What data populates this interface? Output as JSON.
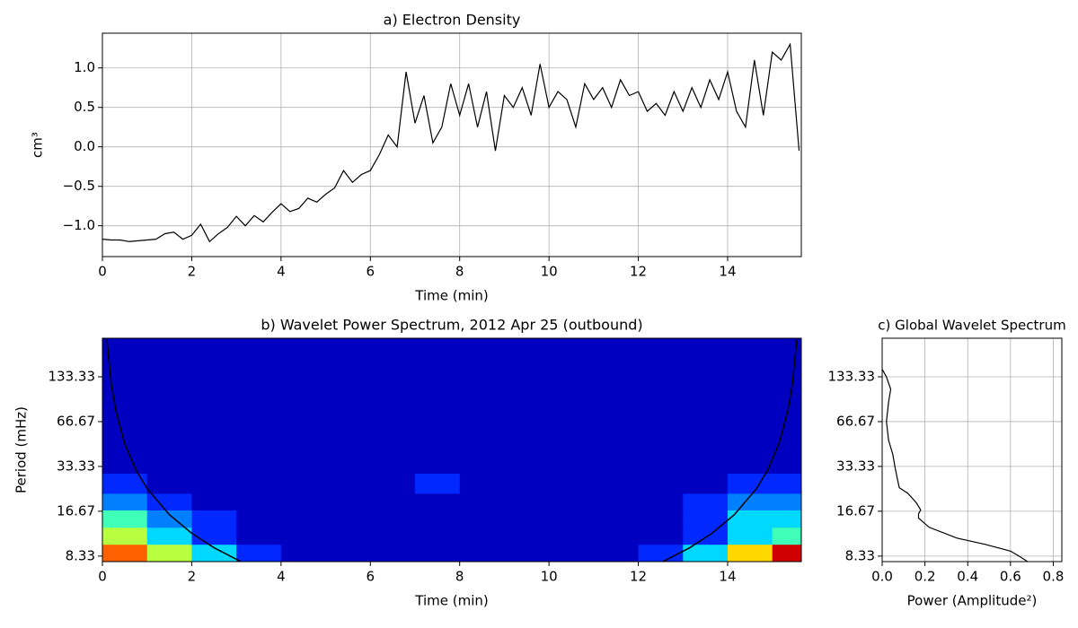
{
  "chart_data": [
    {
      "type": "line",
      "title": "a) Electron Density",
      "xlabel": "Time (min)",
      "ylabel": "cm³",
      "color": "#000000",
      "grid": true,
      "x": [
        0,
        0.2,
        0.4,
        0.6,
        0.8,
        1.0,
        1.2,
        1.4,
        1.6,
        1.8,
        2.0,
        2.2,
        2.4,
        2.6,
        2.8,
        3.0,
        3.2,
        3.4,
        3.6,
        3.8,
        4.0,
        4.2,
        4.4,
        4.6,
        4.8,
        5.0,
        5.2,
        5.4,
        5.6,
        5.8,
        6.0,
        6.2,
        6.4,
        6.6,
        6.8,
        7.0,
        7.2,
        7.4,
        7.6,
        7.8,
        8.0,
        8.2,
        8.4,
        8.6,
        8.8,
        9.0,
        9.2,
        9.4,
        9.6,
        9.8,
        10.0,
        10.2,
        10.4,
        10.6,
        10.8,
        11.0,
        11.2,
        11.4,
        11.6,
        11.8,
        12.0,
        12.2,
        12.4,
        12.6,
        12.8,
        13.0,
        13.2,
        13.4,
        13.6,
        13.8,
        14.0,
        14.2,
        14.4,
        14.6,
        14.8,
        15.0,
        15.2,
        15.4,
        15.6
      ],
      "values": [
        -1.17,
        -1.18,
        -1.18,
        -1.2,
        -1.19,
        -1.18,
        -1.17,
        -1.1,
        -1.08,
        -1.17,
        -1.12,
        -0.98,
        -1.2,
        -1.1,
        -1.02,
        -0.88,
        -1.0,
        -0.87,
        -0.95,
        -0.83,
        -0.72,
        -0.82,
        -0.78,
        -0.65,
        -0.7,
        -0.6,
        -0.52,
        -0.3,
        -0.45,
        -0.35,
        -0.3,
        -0.1,
        0.15,
        0.0,
        0.95,
        0.3,
        0.65,
        0.05,
        0.25,
        0.8,
        0.4,
        0.8,
        0.25,
        0.7,
        -0.05,
        0.65,
        0.5,
        0.75,
        0.4,
        1.05,
        0.5,
        0.7,
        0.6,
        0.25,
        0.8,
        0.6,
        0.75,
        0.5,
        0.85,
        0.65,
        0.7,
        0.45,
        0.55,
        0.4,
        0.7,
        0.45,
        0.75,
        0.5,
        0.85,
        0.6,
        0.95,
        0.45,
        0.25,
        1.1,
        0.4,
        1.2,
        1.1,
        1.3,
        -0.05
      ],
      "xlim": [
        0,
        15.65
      ],
      "ylim": [
        -1.39,
        1.44
      ],
      "xticks": [
        0,
        2,
        4,
        6,
        8,
        10,
        12,
        14
      ],
      "yticks": [
        {
          "value": -1.0,
          "label": "−1.0"
        },
        {
          "value": -0.5,
          "label": "−0.5"
        },
        {
          "value": 0,
          "label": "0.0"
        },
        {
          "value": 0.5,
          "label": "0.5"
        },
        {
          "value": 1.0,
          "label": "1.0"
        }
      ]
    },
    {
      "type": "heatmap",
      "title": "b) Wavelet Power Spectrum, 2012 Apr 25 (outbound)",
      "xlabel": "Time (min)",
      "ylabel": "Period (mHz)",
      "grid": false,
      "log_y": true,
      "x_edges": [
        0,
        1,
        2,
        3,
        4,
        5,
        6,
        7,
        8,
        9,
        10,
        11,
        12,
        13,
        14,
        15,
        15.65
      ],
      "y_edges": [
        7.65,
        10,
        13,
        17,
        22,
        30,
        242
      ],
      "z": [
        [
          7,
          5,
          3,
          1,
          0,
          0,
          0,
          0,
          0,
          0,
          0,
          0,
          1,
          3,
          6,
          8
        ],
        [
          5,
          3,
          1,
          0,
          0,
          0,
          0,
          0,
          0,
          0,
          0,
          0,
          0,
          1,
          3,
          4
        ],
        [
          4,
          2,
          1,
          0,
          0,
          0,
          0,
          0,
          0,
          0,
          0,
          0,
          0,
          1,
          3,
          3
        ],
        [
          2,
          1,
          0,
          0,
          0,
          0,
          0,
          0,
          0,
          0,
          0,
          0,
          0,
          1,
          2,
          2
        ],
        [
          1,
          0,
          0,
          0,
          0,
          0,
          0,
          1,
          0,
          0,
          0,
          0,
          0,
          0,
          1,
          1
        ],
        [
          0,
          0,
          0,
          0,
          0,
          0,
          0,
          0,
          0,
          0,
          0,
          0,
          0,
          0,
          0,
          0
        ]
      ],
      "colors": [
        "#0000c0",
        "#0028ff",
        "#0080ff",
        "#00d8ff",
        "#40ffb8",
        "#b8ff40",
        "#ffd800",
        "#ff6000",
        "#d00000"
      ],
      "coi": {
        "color": "#000000",
        "x": [
          0.1,
          0.2,
          0.3,
          0.5,
          0.75,
          1,
          1.5,
          2,
          2.5,
          3.1,
          7.8,
          12.55,
          13.15,
          13.65,
          14.15,
          14.65,
          14.9,
          15.15,
          15.35,
          15.45,
          15.55
        ],
        "values": [
          237,
          118.5,
          79,
          47.4,
          31.6,
          23.7,
          15.8,
          11.85,
          9.48,
          7.65,
          null,
          7.65,
          9.48,
          11.85,
          15.8,
          23.7,
          31.6,
          47.4,
          79,
          118.5,
          237
        ]
      },
      "xlim": [
        0,
        15.65
      ],
      "ylim": [
        7.65,
        242
      ],
      "xticks": [
        0,
        2,
        4,
        6,
        8,
        10,
        12,
        14
      ],
      "yticks": [
        8.33,
        16.67,
        33.33,
        66.67,
        133.33
      ]
    },
    {
      "type": "profile",
      "title": "c) Global Wavelet Spectrum",
      "xlabel": "Power (Amplitude²)",
      "color": "#000000",
      "grid": true,
      "log_y": true,
      "y": [
        150,
        133,
        110,
        90,
        66.67,
        50,
        40,
        33,
        28,
        24,
        22,
        19,
        17,
        16,
        15,
        13,
        11,
        10,
        9,
        8.33,
        7.65
      ],
      "values": [
        0.0,
        0.02,
        0.04,
        0.03,
        0.02,
        0.03,
        0.05,
        0.06,
        0.07,
        0.08,
        0.12,
        0.16,
        0.18,
        0.17,
        0.17,
        0.22,
        0.35,
        0.48,
        0.6,
        0.64,
        0.68
      ],
      "xlim": [
        0,
        0.84
      ],
      "ylim": [
        7.65,
        242
      ],
      "xticks": [
        {
          "value": 0,
          "label": "0.0"
        },
        {
          "value": 0.2,
          "label": "0.2"
        },
        {
          "value": 0.4,
          "label": "0.4"
        },
        {
          "value": 0.6,
          "label": "0.6"
        },
        {
          "value": 0.8,
          "label": "0.8"
        }
      ],
      "yticks": [
        8.33,
        16.67,
        33.33,
        66.67,
        133.33
      ]
    }
  ]
}
